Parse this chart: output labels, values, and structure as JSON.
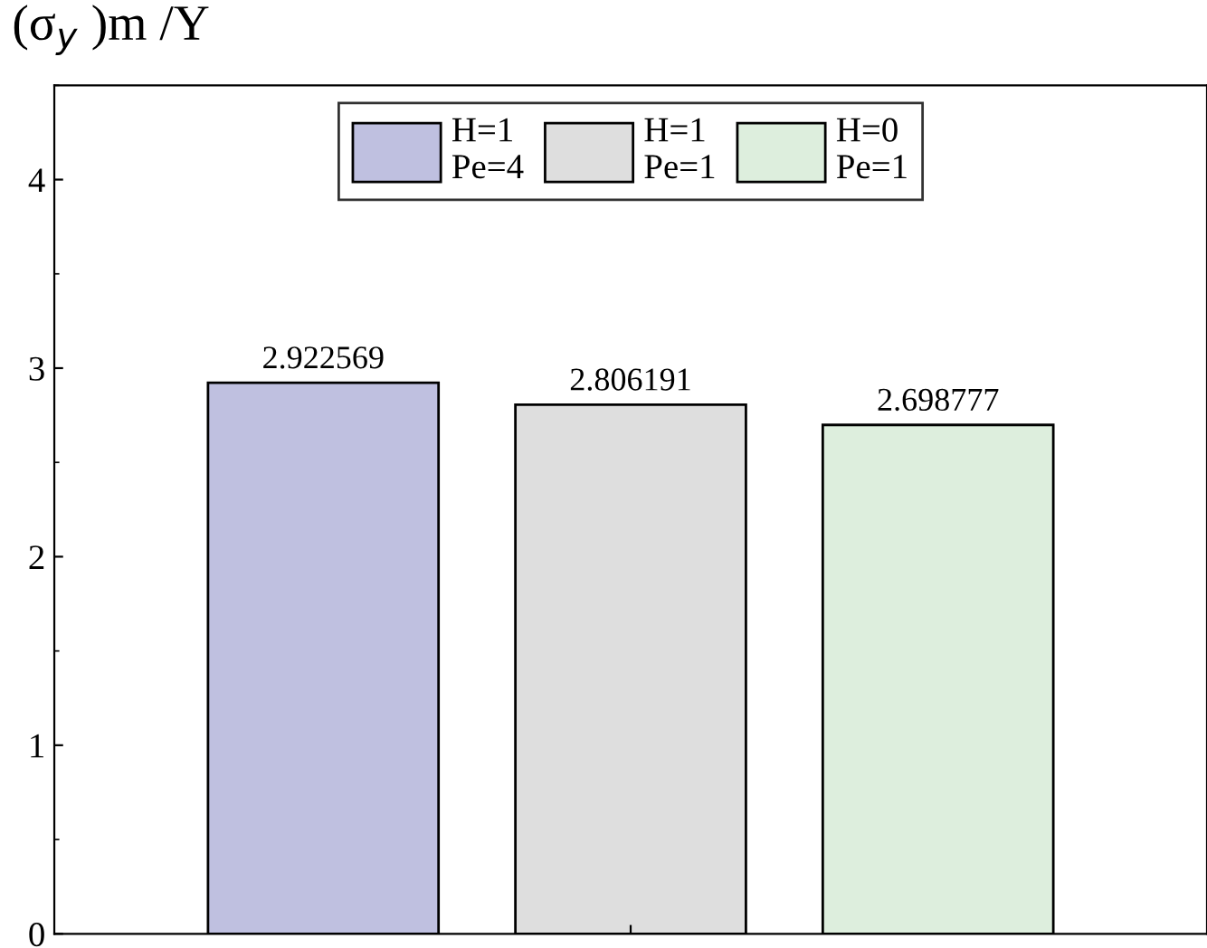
{
  "chart_data": {
    "type": "bar",
    "ylabel": "(σ$_{y}$ )m /Y",
    "categories": [
      null
    ],
    "series": [
      {
        "name": "H=1\nPe=4",
        "color": "#bfc0e0",
        "values": [
          2.922569
        ]
      },
      {
        "name": "H=1\nPe=1",
        "color": "#dedede",
        "values": [
          2.806191
        ]
      },
      {
        "name": "H=0\nPe=1",
        "color": "#ddeedd",
        "values": [
          2.698777
        ]
      }
    ],
    "ylim": [
      0,
      4.5
    ],
    "yticks": [
      0,
      1,
      2,
      3,
      4
    ],
    "data_labels": true,
    "legend": "top",
    "grid": false
  }
}
